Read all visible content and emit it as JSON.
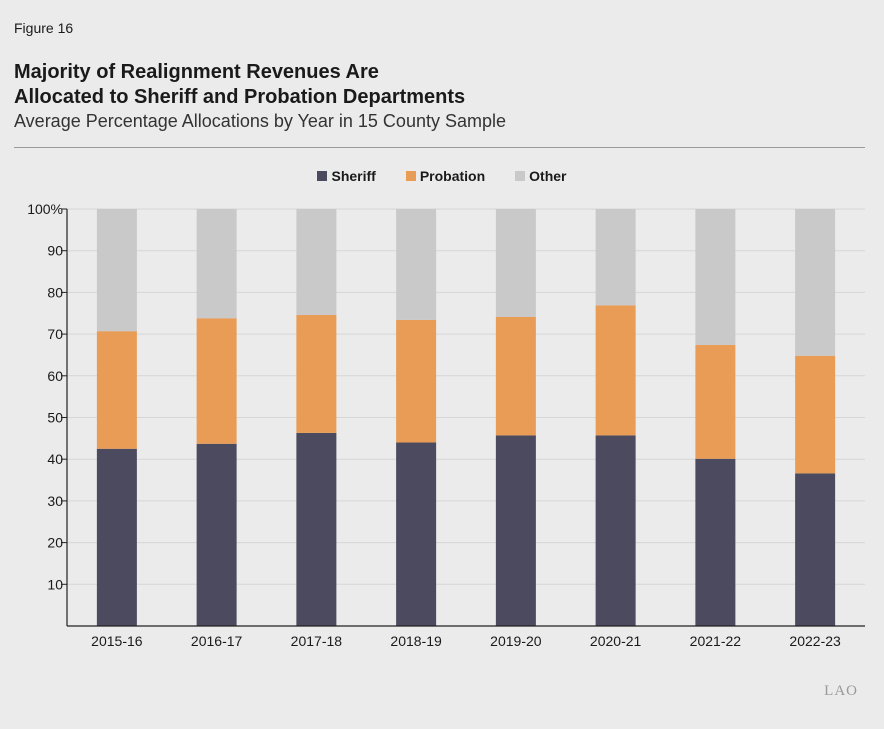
{
  "figure_label": "Figure 16",
  "title_line1": "Majority of Realignment Revenues Are",
  "title_line2": "Allocated to Sheriff and Probation Departments",
  "subtitle": "Average Percentage Allocations by Year in 15 County Sample",
  "logo_text": "LAO",
  "colors": {
    "Sheriff": "#4b4a5f",
    "Probation": "#e89c56",
    "Other": "#c9c9c9"
  },
  "chart_data": {
    "type": "bar",
    "stacked": true,
    "categories": [
      "2015-16",
      "2016-17",
      "2017-18",
      "2018-19",
      "2019-20",
      "2020-21",
      "2021-22",
      "2022-23"
    ],
    "series": [
      {
        "name": "Sheriff",
        "values": [
          42.5,
          43.7,
          46.3,
          44.0,
          45.7,
          45.7,
          40.1,
          36.6
        ]
      },
      {
        "name": "Probation",
        "values": [
          28.2,
          30.1,
          28.3,
          29.4,
          28.4,
          31.2,
          27.3,
          28.2
        ]
      },
      {
        "name": "Other",
        "values": [
          29.3,
          26.2,
          25.4,
          26.6,
          25.9,
          23.1,
          32.6,
          35.2
        ]
      }
    ],
    "yticks": [
      "10",
      "20",
      "30",
      "40",
      "50",
      "60",
      "70",
      "80",
      "90",
      "100%"
    ],
    "ylim": [
      0,
      100
    ],
    "grid": true,
    "legend_position": "top-center"
  }
}
